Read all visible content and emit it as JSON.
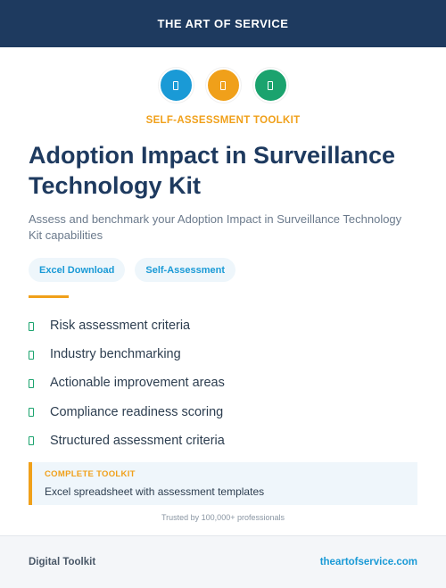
{
  "header": {
    "title": "THE ART OF SERVICE"
  },
  "icons": [
    {
      "name": "document-icon",
      "color": "#1a9ad6"
    },
    {
      "name": "document-icon",
      "color": "#f0a01a"
    },
    {
      "name": "document-icon",
      "color": "#1ba36e"
    }
  ],
  "kicker": "SELF-ASSESSMENT TOOLKIT",
  "title": "Adoption Impact in Surveillance Technology Kit",
  "subtitle": "Assess and benchmark your Adoption Impact in Surveillance Technology Kit capabilities",
  "tags": [
    "Excel Download",
    "Self-Assessment"
  ],
  "features": [
    "Risk assessment criteria",
    "Industry benchmarking",
    "Actionable improvement areas",
    "Compliance readiness scoring",
    "Structured assessment criteria"
  ],
  "callout": {
    "label": "COMPLETE TOOLKIT",
    "text": "Excel spreadsheet with assessment templates"
  },
  "trust": "Trusted by 100,000+ professionals",
  "footer": {
    "left": "Digital Toolkit",
    "right": "theartofservice.com"
  },
  "colors": {
    "navy": "#1e3a5f",
    "orange": "#f0a01a",
    "blue": "#1a9ad6",
    "green": "#1ba36e"
  }
}
